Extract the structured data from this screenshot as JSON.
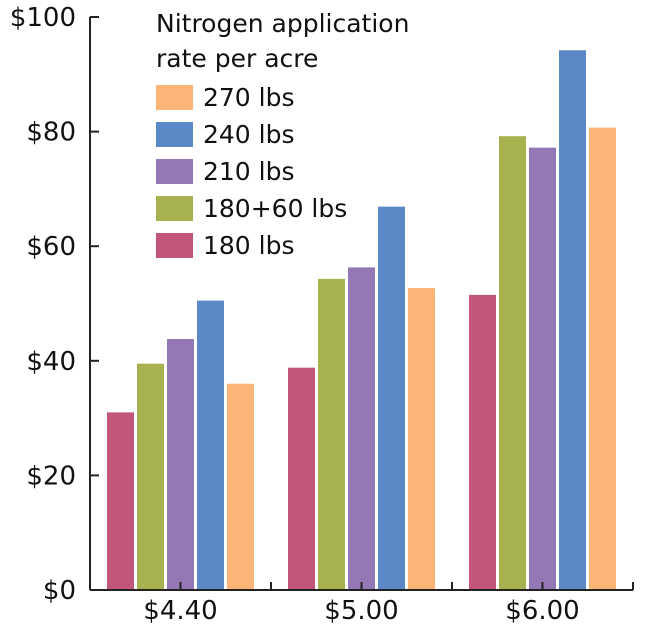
{
  "chart_data": {
    "type": "bar",
    "title": "",
    "xlabel": "",
    "ylabel": "",
    "ylim": [
      0,
      100
    ],
    "y_ticks": [
      "$0",
      "$20",
      "$40",
      "$60",
      "$80",
      "$100"
    ],
    "categories": [
      "$4.40",
      "$5.00",
      "$6.00"
    ],
    "legend_title": "Nitrogen application rate per acre",
    "legend_title_lines": [
      "Nitrogen application",
      "rate per acre"
    ],
    "legend_order": [
      "270 lbs",
      "240 lbs",
      "210 lbs",
      "180+60 lbs",
      "180 lbs"
    ],
    "legend_placement": "top-right",
    "grid": false,
    "series": [
      {
        "name": "180 lbs",
        "color": "#c2567a",
        "values": [
          31,
          38.8,
          51.5
        ]
      },
      {
        "name": "180+60 lbs",
        "color": "#a8b150",
        "values": [
          39.5,
          54.3,
          79.2
        ]
      },
      {
        "name": "210 lbs",
        "color": "#9478b6",
        "values": [
          43.8,
          56.3,
          77.2
        ]
      },
      {
        "name": "240 lbs",
        "color": "#5b89c8",
        "values": [
          50.5,
          66.9,
          94.2
        ]
      },
      {
        "name": "270 lbs",
        "color": "#fdb577",
        "values": [
          36,
          52.7,
          80.7
        ]
      }
    ]
  }
}
